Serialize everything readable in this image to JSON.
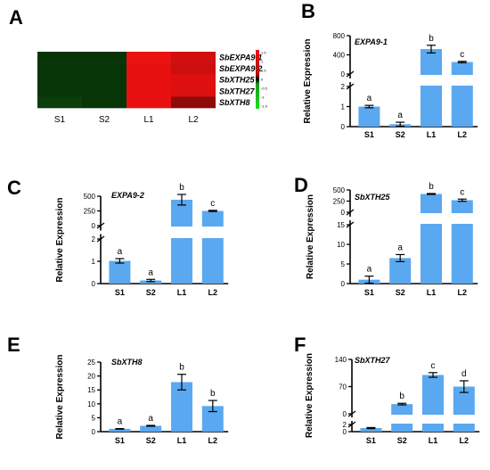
{
  "colors": {
    "bar": "#5aa8f0",
    "heat_low": "#22dd22",
    "heat_mid": "#000000",
    "heat_high": "#ee1111"
  },
  "heatmap": {
    "letter": "A",
    "columns": [
      "S1",
      "S2",
      "L1",
      "L2"
    ],
    "rows": [
      "SbEXPA9-1",
      "SbEXPA9-2",
      "SbXTH25",
      "SbXTH27",
      "SbXTH8"
    ],
    "values": [
      [
        -1.0,
        -1.0,
        1.4,
        0.9
      ],
      [
        -1.0,
        -1.0,
        1.3,
        0.8
      ],
      [
        -1.0,
        -1.0,
        1.3,
        1.2
      ],
      [
        -1.0,
        -1.0,
        1.3,
        1.1
      ],
      [
        -1.1,
        -1.0,
        1.3,
        0.2
      ]
    ],
    "colorbar_ticks": [
      "1.5",
      "1",
      "0.5",
      "0",
      "-0.5",
      "-1",
      "-1.5"
    ],
    "range": [
      -1.5,
      1.5
    ]
  },
  "chart_data": [
    {
      "type": "bar",
      "letter": "B",
      "gene": "EXPA9-1",
      "ylabel": "Relative Expression",
      "categories": [
        "S1",
        "S2",
        "L1",
        "L2"
      ],
      "values": [
        1.0,
        0.12,
        520,
        250
      ],
      "errors": [
        0.06,
        0.1,
        80,
        15
      ],
      "significance": [
        "a",
        "a",
        "b",
        "c"
      ],
      "lower": {
        "range": [
          0,
          2
        ],
        "ticks": [
          "0",
          "1",
          "2"
        ]
      },
      "upper": {
        "range": [
          0,
          800
        ],
        "ticks": [
          "0",
          "400",
          "800"
        ]
      }
    },
    {
      "type": "bar",
      "letter": "C",
      "gene": "EXPA9-2",
      "ylabel": "Relative Expression",
      "categories": [
        "S1",
        "S2",
        "L1",
        "L2"
      ],
      "values": [
        1.02,
        0.14,
        440,
        250
      ],
      "errors": [
        0.1,
        0.05,
        90,
        10
      ],
      "significance": [
        "a",
        "a",
        "b",
        "c"
      ],
      "lower": {
        "range": [
          0,
          2
        ],
        "ticks": [
          "0",
          "1",
          "2"
        ]
      },
      "upper": {
        "range": [
          0,
          500
        ],
        "ticks": [
          "0",
          "250",
          "500"
        ]
      }
    },
    {
      "type": "bar",
      "letter": "D",
      "gene": "SbXTH25",
      "ylabel": "Relative Expression",
      "categories": [
        "S1",
        "S2",
        "L1",
        "L2"
      ],
      "values": [
        1.0,
        6.5,
        410,
        270
      ],
      "errors": [
        0.9,
        0.9,
        10,
        25
      ],
      "significance": [
        "a",
        "a",
        "b",
        "c"
      ],
      "lower": {
        "range": [
          0,
          15
        ],
        "ticks": [
          "0",
          "5",
          "10",
          "15"
        ]
      },
      "upper": {
        "range": [
          0,
          500
        ],
        "ticks": [
          "0",
          "250",
          "500"
        ]
      }
    },
    {
      "type": "bar",
      "letter": "E",
      "gene": "SbXTH8",
      "ylabel": "Relative Expression",
      "categories": [
        "S1",
        "S2",
        "L1",
        "L2"
      ],
      "values": [
        1.0,
        2.1,
        17.8,
        9.2
      ],
      "errors": [
        0.1,
        0.15,
        2.8,
        2.0
      ],
      "significance": [
        "a",
        "a",
        "b",
        "b"
      ],
      "range": [
        0,
        25
      ],
      "ticks": [
        "0",
        "5",
        "10",
        "15",
        "20",
        "25"
      ]
    },
    {
      "type": "bar",
      "letter": "F",
      "gene": "SbXTH27",
      "ylabel": "Relative Expression",
      "categories": [
        "S1",
        "S2",
        "L1",
        "L2"
      ],
      "values": [
        1.0,
        25,
        100,
        70
      ],
      "errors": [
        0.15,
        2,
        6,
        15
      ],
      "significance": [
        "a",
        "b",
        "c",
        "d"
      ],
      "lower": {
        "range": [
          0,
          2
        ],
        "ticks": [
          "0",
          "2"
        ]
      },
      "upper": {
        "range": [
          0,
          140
        ],
        "ticks": [
          "0",
          "70",
          "140"
        ]
      }
    }
  ]
}
